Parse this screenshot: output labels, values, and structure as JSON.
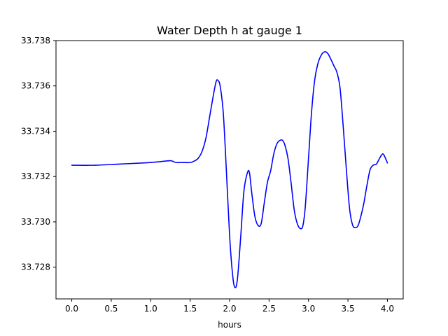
{
  "chart_data": {
    "type": "line",
    "title": "Water Depth h at gauge 1",
    "xlabel": "hours",
    "ylabel": "",
    "xlim": [
      -0.2,
      4.2
    ],
    "ylim": [
      33.7266,
      33.738
    ],
    "xticks": [
      0.0,
      0.5,
      1.0,
      1.5,
      2.0,
      2.5,
      3.0,
      3.5,
      4.0
    ],
    "xtick_labels": [
      "0.0",
      "0.5",
      "1.0",
      "1.5",
      "2.0",
      "2.5",
      "3.0",
      "3.5",
      "4.0"
    ],
    "yticks": [
      33.728,
      33.73,
      33.732,
      33.734,
      33.736,
      33.738
    ],
    "ytick_labels": [
      "33.728",
      "33.730",
      "33.732",
      "33.734",
      "33.736",
      "33.738"
    ],
    "grid": false,
    "series": [
      {
        "color": "#0000ff",
        "x": [
          0.0,
          0.3,
          0.6,
          0.9,
          1.1,
          1.25,
          1.32,
          1.4,
          1.5,
          1.55,
          1.6,
          1.65,
          1.7,
          1.75,
          1.8,
          1.83,
          1.85,
          1.88,
          1.92,
          1.96,
          2.0,
          2.04,
          2.07,
          2.1,
          2.14,
          2.18,
          2.22,
          2.25,
          2.28,
          2.32,
          2.36,
          2.4,
          2.44,
          2.48,
          2.52,
          2.56,
          2.6,
          2.64,
          2.67,
          2.7,
          2.74,
          2.78,
          2.82,
          2.86,
          2.9,
          2.93,
          2.96,
          3.0,
          3.04,
          3.08,
          3.12,
          3.16,
          3.2,
          3.24,
          3.28,
          3.32,
          3.36,
          3.4,
          3.44,
          3.48,
          3.52,
          3.56,
          3.6,
          3.63,
          3.66,
          3.7,
          3.74,
          3.78,
          3.82,
          3.86,
          3.9,
          3.94,
          3.97,
          4.0
        ],
        "y": [
          33.7325,
          33.7325,
          33.73255,
          33.7326,
          33.73265,
          33.7327,
          33.73262,
          33.73262,
          33.73262,
          33.73268,
          33.7328,
          33.7331,
          33.7337,
          33.7347,
          33.7357,
          33.7362,
          33.73625,
          33.736,
          33.7348,
          33.7322,
          33.7294,
          33.7276,
          33.7271,
          33.7275,
          33.7293,
          33.7313,
          33.7321,
          33.7322,
          33.7313,
          33.73025,
          33.72985,
          33.72992,
          33.73085,
          33.73175,
          33.73225,
          33.733,
          33.73345,
          33.7336,
          33.7336,
          33.7334,
          33.7328,
          33.7317,
          33.7305,
          33.7299,
          33.7297,
          33.72985,
          33.7307,
          33.7328,
          33.7349,
          33.7363,
          33.737,
          33.73735,
          33.7375,
          33.73745,
          33.7372,
          33.7369,
          33.7366,
          33.7359,
          33.7342,
          33.7323,
          33.7306,
          33.72985,
          33.72975,
          33.72985,
          33.7302,
          33.7308,
          33.7316,
          33.7323,
          33.7325,
          33.73255,
          33.7328,
          33.733,
          33.73285,
          33.7326
        ]
      }
    ]
  }
}
